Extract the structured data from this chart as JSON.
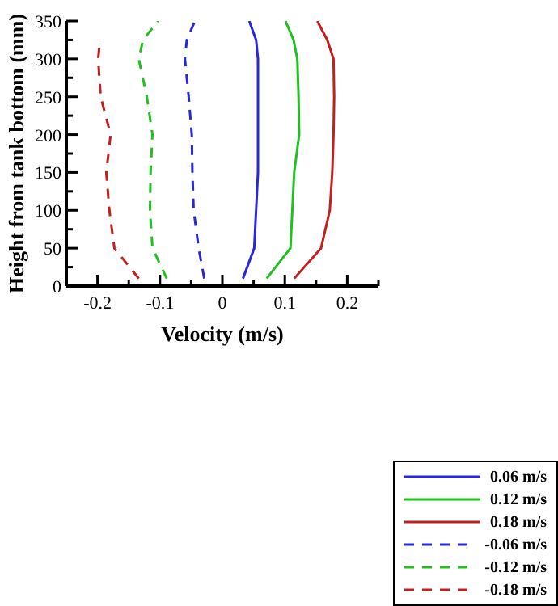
{
  "chart_data": {
    "type": "line",
    "xlabel": "Velocity (m/s)",
    "ylabel": "Height from tank bottom (mm)",
    "xlim": [
      -0.25,
      0.25
    ],
    "ylim": [
      0,
      350
    ],
    "xticks": [
      {
        "value": -0.25,
        "label": null
      },
      -0.2,
      {
        "value": -0.15,
        "label": null
      },
      -0.1,
      {
        "value": -0.05,
        "label": null
      },
      0,
      {
        "value": 0.05,
        "label": null
      },
      0.1,
      {
        "value": 0.15,
        "label": null
      },
      0.2,
      {
        "value": 0.25,
        "label": null
      }
    ],
    "yticks": [
      0,
      {
        "value": 25,
        "label": null
      },
      50,
      {
        "value": 75,
        "label": null
      },
      100,
      {
        "value": 125,
        "label": null
      },
      150,
      {
        "value": 175,
        "label": null
      },
      200,
      {
        "value": 225,
        "label": null
      },
      250,
      {
        "value": 275,
        "label": null
      },
      300,
      {
        "value": 325,
        "label": null
      },
      350
    ],
    "legend": "bottom right",
    "marker": "none",
    "series": [
      {
        "name": "0.06 m/s",
        "color": "#2828d8",
        "line_style": "solid",
        "x": [
          0.033,
          0.051,
          0.054,
          0.057,
          0.057,
          0.057,
          0.057,
          0.054,
          0.043
        ],
        "values": [
          10,
          50,
          100,
          150,
          200,
          250,
          300,
          325,
          350
        ]
      },
      {
        "name": "0.12 m/s",
        "color": "#20c020",
        "line_style": "solid",
        "x": [
          0.071,
          0.109,
          0.112,
          0.115,
          0.123,
          0.122,
          0.12,
          0.114,
          0.101
        ],
        "values": [
          10,
          50,
          100,
          150,
          200,
          250,
          300,
          325,
          350
        ]
      },
      {
        "name": "0.18 m/s",
        "color": "#c02020",
        "line_style": "solid",
        "x": [
          0.115,
          0.158,
          0.172,
          0.176,
          0.178,
          0.179,
          0.178,
          0.168,
          0.152
        ],
        "values": [
          10,
          50,
          100,
          150,
          200,
          250,
          300,
          325,
          350
        ]
      },
      {
        "name": "-0.06 m/s",
        "color": "#2828d8",
        "line_style": "dashed",
        "x": [
          -0.029,
          -0.038,
          -0.046,
          -0.048,
          -0.049,
          -0.054,
          -0.06,
          -0.057,
          -0.044
        ],
        "values": [
          10,
          50,
          100,
          150,
          200,
          250,
          300,
          325,
          350
        ]
      },
      {
        "name": "-0.12 m/s",
        "color": "#20c020",
        "line_style": "dashed",
        "x": [
          -0.089,
          -0.112,
          -0.116,
          -0.115,
          -0.112,
          -0.121,
          -0.134,
          -0.127,
          -0.103
        ],
        "values": [
          10,
          50,
          100,
          150,
          200,
          250,
          300,
          325,
          350
        ]
      },
      {
        "name": "-0.18 m/s",
        "color": "#c02020",
        "line_style": "dashed",
        "x": [
          -0.134,
          -0.173,
          -0.181,
          -0.186,
          -0.179,
          -0.195,
          -0.199,
          -0.196
        ],
        "values": [
          10,
          50,
          100,
          150,
          200,
          250,
          300,
          325
        ]
      }
    ]
  }
}
